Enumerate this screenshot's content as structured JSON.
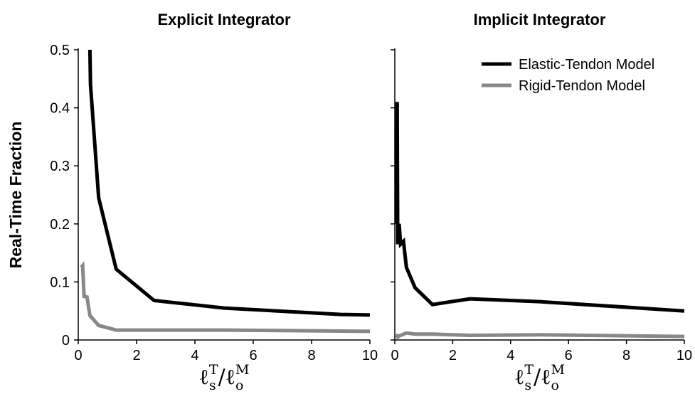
{
  "chart_data": [
    {
      "type": "line",
      "title": "Explicit Integrator",
      "ylabel": "Real-Time Fraction",
      "xlabel": [
        {
          "text": "ℓ"
        },
        {
          "text": "s",
          "shift": "sub"
        },
        {
          "text": "T",
          "shift": "sup"
        },
        {
          "text": "/ℓ"
        },
        {
          "text": "o",
          "shift": "sub"
        },
        {
          "text": "M",
          "shift": "sup"
        }
      ],
      "xlim": [
        0,
        10
      ],
      "xticks": [
        0,
        2,
        4,
        6,
        8,
        10
      ],
      "ylim": [
        0,
        0.5
      ],
      "yticks": [
        0,
        0.1,
        0.2,
        0.3,
        0.4,
        0.5
      ],
      "series": [
        {
          "name": "Elastic-Tendon Model",
          "color": "#000000",
          "x": [
            0.4,
            0.42,
            0.7,
            1.3,
            2.6,
            5,
            9,
            10
          ],
          "values": [
            0.5,
            0.44,
            0.245,
            0.122,
            0.068,
            0.055,
            0.044,
            0.043
          ]
        },
        {
          "name": "Rigid-Tendon Model",
          "color": "#888888",
          "x": [
            0.1,
            0.15,
            0.2,
            0.3,
            0.4,
            0.7,
            1.3,
            2.6,
            5,
            10
          ],
          "values": [
            0.125,
            0.128,
            0.075,
            0.074,
            0.042,
            0.025,
            0.017,
            0.017,
            0.017,
            0.015
          ]
        }
      ]
    },
    {
      "type": "line",
      "title": "Implicit Integrator",
      "legend": "upper right",
      "xlabel": [
        {
          "text": "ℓ"
        },
        {
          "text": "s",
          "shift": "sub"
        },
        {
          "text": "T",
          "shift": "sup"
        },
        {
          "text": "/ℓ"
        },
        {
          "text": "o",
          "shift": "sub"
        },
        {
          "text": "M",
          "shift": "sup"
        }
      ],
      "xlim": [
        0,
        10
      ],
      "xticks": [
        0,
        2,
        4,
        6,
        8,
        10
      ],
      "ylim": [
        0,
        0.5
      ],
      "yticks": [
        0,
        0.1,
        0.2,
        0.3,
        0.4,
        0.5
      ],
      "ytick_labels": false,
      "series": [
        {
          "name": "Elastic-Tendon Model",
          "color": "#000000",
          "x": [
            0.05,
            0.08,
            0.1,
            0.15,
            0.2,
            0.3,
            0.4,
            0.7,
            1.3,
            2.6,
            5,
            10
          ],
          "values": [
            0.2,
            0.41,
            0.165,
            0.2,
            0.165,
            0.17,
            0.125,
            0.09,
            0.061,
            0.071,
            0.066,
            0.05
          ]
        },
        {
          "name": "Rigid-Tendon Model",
          "color": "#888888",
          "x": [
            0.05,
            0.1,
            0.2,
            0.4,
            0.7,
            1.3,
            2.6,
            5,
            10
          ],
          "values": [
            0.01,
            0.005,
            0.008,
            0.012,
            0.01,
            0.01,
            0.008,
            0.009,
            0.006
          ]
        }
      ]
    }
  ]
}
